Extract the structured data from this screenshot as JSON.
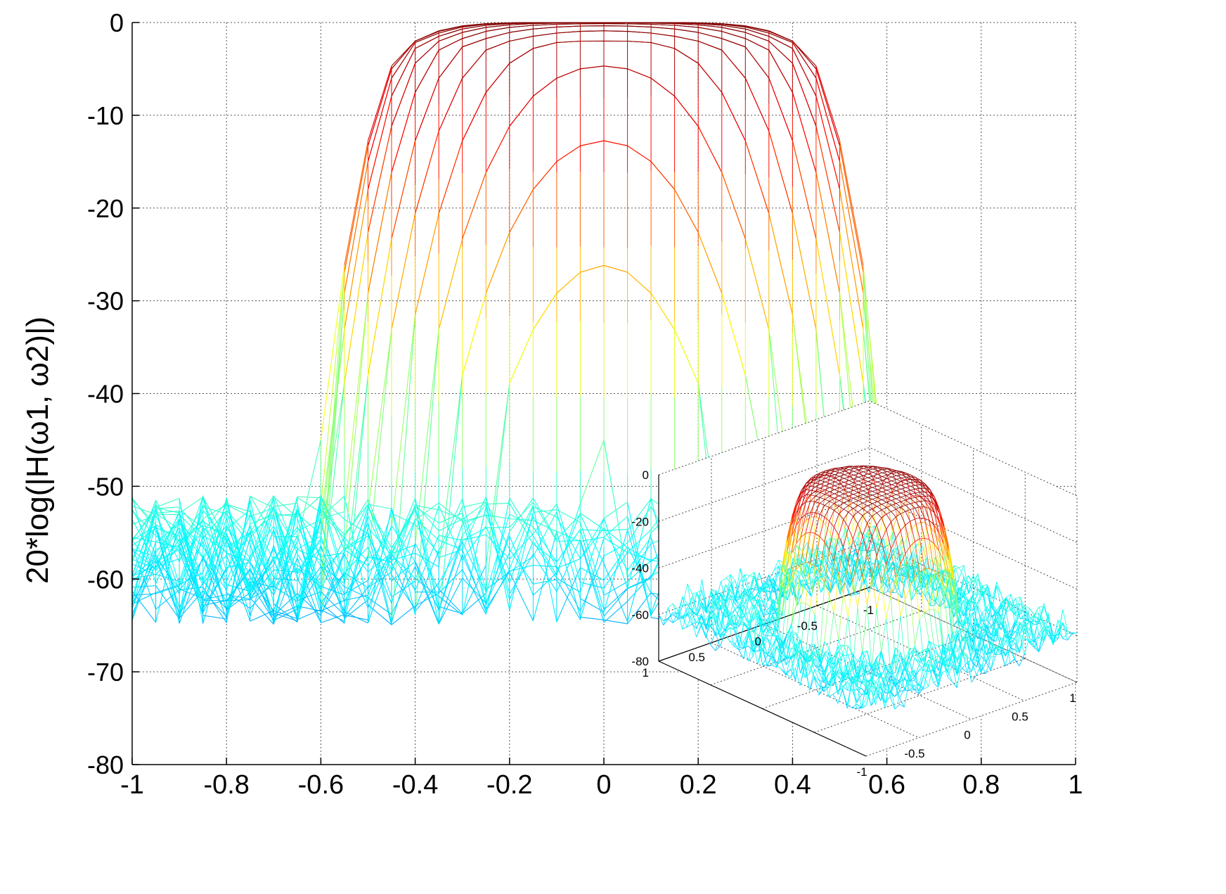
{
  "chart_data": {
    "type": "surface",
    "xlabel": "",
    "ylabel": "20*log(|H(ω1, ω2)|)",
    "xlim": [
      -1,
      1
    ],
    "ylim": [
      -80,
      0
    ],
    "grid": true,
    "x_ticks": [
      "-1",
      "-0.8",
      "-0.6",
      "-0.4",
      "-0.2",
      "0",
      "0.2",
      "0.4",
      "0.6",
      "0.8",
      "1"
    ],
    "y_ticks": [
      "0",
      "-10",
      "-20",
      "-30",
      "-40",
      "-50",
      "-60",
      "-70",
      "-80"
    ],
    "colormap": [
      "#00008f",
      "#0080ff",
      "#00ffff",
      "#80ff80",
      "#ffff00",
      "#ff8000",
      "#ff0000",
      "#800000"
    ],
    "passband_edge": 0.4,
    "transition_edge": 0.6,
    "passband_level_db": 0,
    "stopband_level_db": -45,
    "inset": {
      "type": "surface-3d",
      "z_ticks": [
        "0",
        "-20",
        "-40",
        "-60",
        "-80"
      ],
      "x_ticks": [
        "-1",
        "-0.5",
        "0",
        "0.5",
        "1"
      ],
      "y_ticks": [
        "-1",
        "-0.5",
        "0",
        "0.5",
        "1"
      ],
      "zlim": [
        -80,
        0
      ]
    }
  }
}
